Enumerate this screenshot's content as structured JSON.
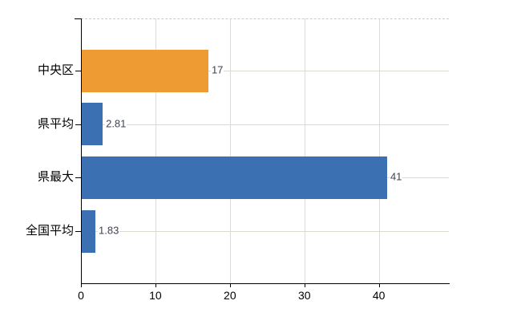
{
  "chart_data": {
    "type": "bar",
    "orientation": "horizontal",
    "title": "",
    "xlabel": "",
    "ylabel": "",
    "categories": [
      "中央区",
      "県平均",
      "県最大",
      "全国平均"
    ],
    "values": [
      17,
      2.81,
      41,
      1.83
    ],
    "value_labels": [
      "17",
      "2.81",
      "41",
      "1.83"
    ],
    "bar_colors": [
      "#ee9b34",
      "#3b71b2",
      "#3b71b2",
      "#3b71b2"
    ],
    "xlim": [
      0,
      49.4
    ],
    "x_ticks": [
      0,
      10,
      20,
      30,
      40
    ],
    "x_tick_labels": [
      "0",
      "10",
      "20",
      "30",
      "40"
    ],
    "grid": true,
    "legend": false
  },
  "colors": {
    "background": "#ffffff",
    "bar_blue": "#3b71b2",
    "bar_orange": "#ee9b34",
    "grid_vertical": "#dcdcdc",
    "grid_horizontal": "#d6dcd2",
    "top_border": "#c9c9ce",
    "axis": "#000000",
    "category_text": "#000000",
    "tick_text": "#000000",
    "value_text": "#3d4350"
  }
}
